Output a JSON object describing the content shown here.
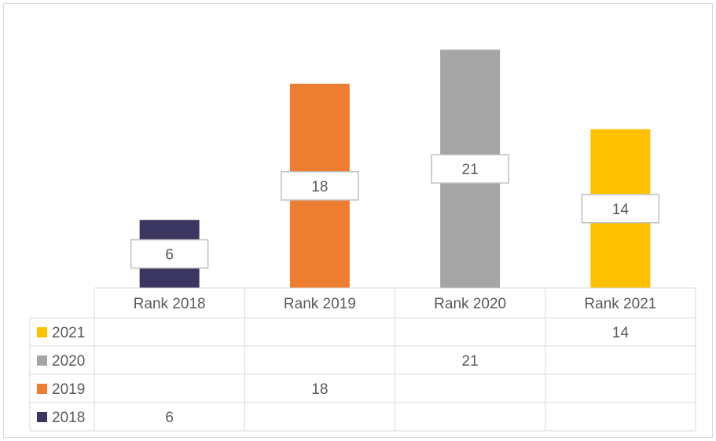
{
  "chart_data": {
    "type": "bar",
    "categories": [
      "Rank 2018",
      "Rank 2019",
      "Rank 2020",
      "Rank 2021"
    ],
    "series": [
      {
        "name": "2021",
        "values": [
          null,
          null,
          null,
          14
        ],
        "color": "#FFC000"
      },
      {
        "name": "2020",
        "values": [
          null,
          null,
          21,
          null
        ],
        "color": "#A5A5A5"
      },
      {
        "name": "2019",
        "values": [
          null,
          18,
          null,
          null
        ],
        "color": "#ED7D31"
      },
      {
        "name": "2018",
        "values": [
          6,
          null,
          null,
          null
        ],
        "color": "#3B3561"
      }
    ],
    "ylim": [
      0,
      24
    ],
    "grid": false,
    "legend": "data-table",
    "data_table": true
  }
}
